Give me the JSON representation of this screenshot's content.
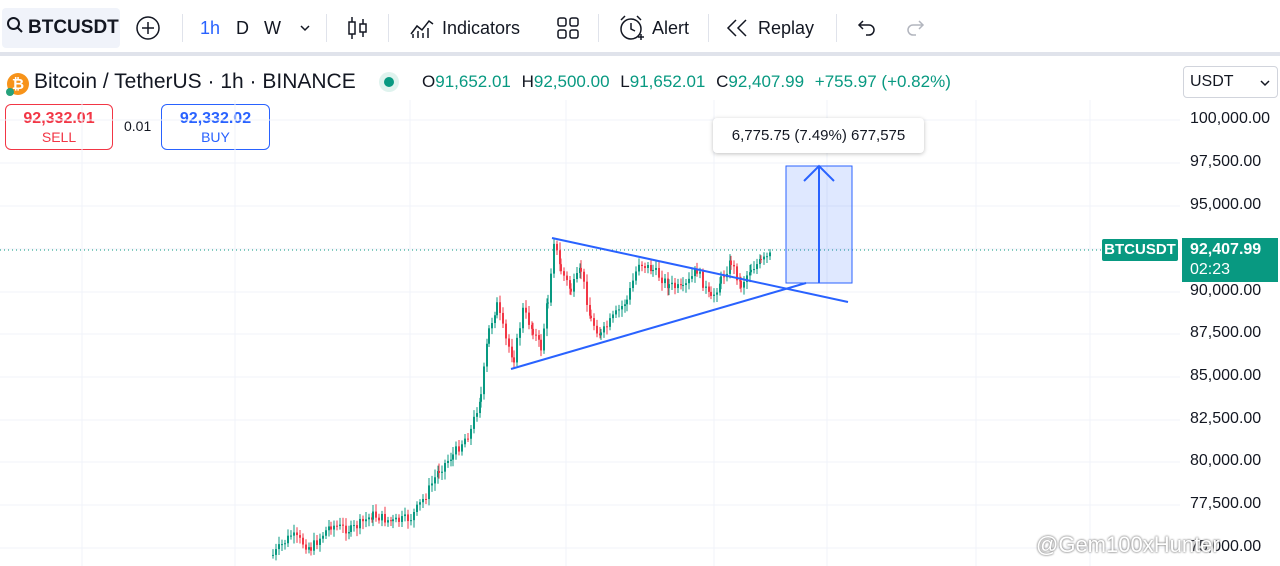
{
  "toolbar": {
    "symbol": "BTCUSDT",
    "timeframes": [
      "1h",
      "D",
      "W"
    ],
    "indicators_label": "Indicators",
    "alert_label": "Alert",
    "replay_label": "Replay"
  },
  "legend": {
    "title": "Bitcoin / TetherUS · 1h · BINANCE",
    "open_key": "O",
    "open": "91,652.01",
    "high_key": "H",
    "high": "92,500.00",
    "low_key": "L",
    "low": "91,652.01",
    "close_key": "C",
    "close": "92,407.99",
    "change": "+755.97 (+0.82%)"
  },
  "currency_select": "USDT",
  "trade": {
    "sell_price": "92,332.01",
    "sell_label": "SELL",
    "spread": "0.01",
    "buy_price": "92,332.02",
    "buy_label": "BUY"
  },
  "measure_label": "6,775.75 (7.49%) 677,575",
  "price_scale": [
    "100,000.00",
    "97,500.00",
    "95,000.00",
    "90,000.00",
    "87,500.00",
    "85,000.00",
    "82,500.00",
    "80,000.00",
    "77,500.00",
    "75,000.00"
  ],
  "last_price": {
    "symbol": "BTCUSDT",
    "price": "92,407.99",
    "countdown": "02:23"
  },
  "watermark": "@Gem100xHunter",
  "colors": {
    "up": "#089981",
    "down": "#f23645",
    "accent": "#2962ff",
    "trendline": "#2962ff"
  }
}
